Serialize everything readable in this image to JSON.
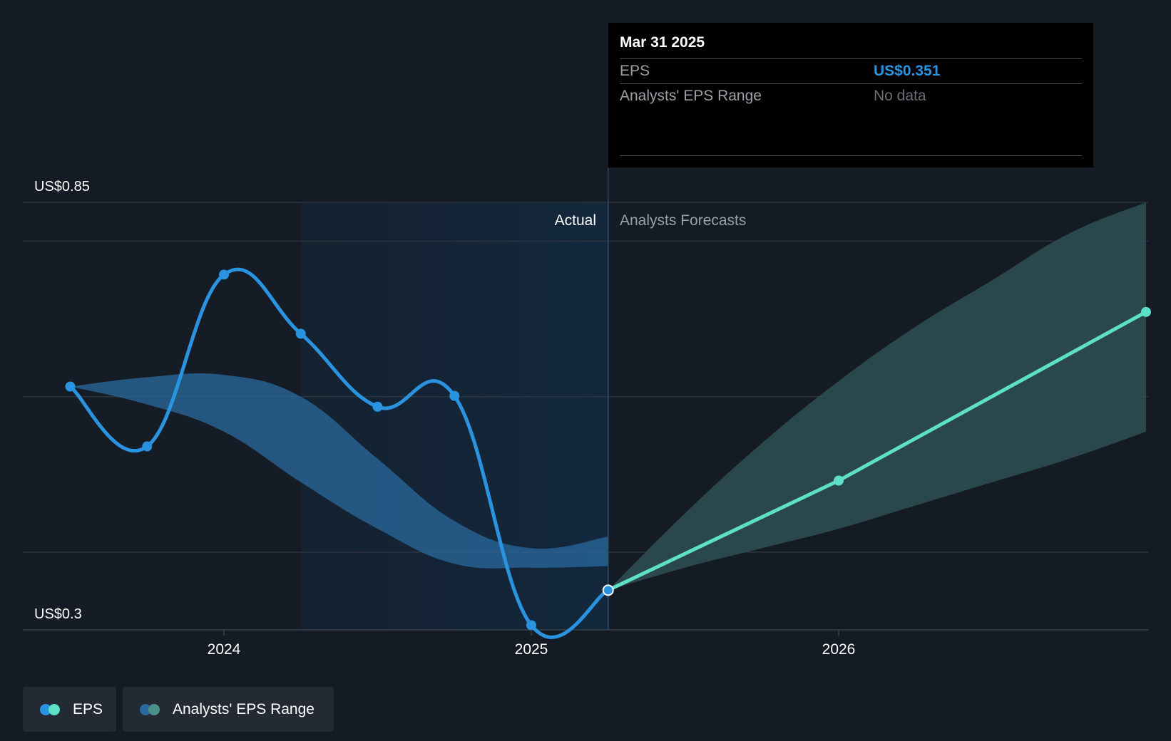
{
  "chart_data": {
    "type": "line",
    "y_axis": {
      "top_label": "US$0.85",
      "bottom_label": "US$0.3",
      "ylim": [
        0.3,
        0.85
      ]
    },
    "x_ticks": [
      {
        "label": "2024",
        "year": 2024.0
      },
      {
        "label": "2025",
        "year": 2025.0
      },
      {
        "label": "2026",
        "year": 2026.0
      }
    ],
    "regions": {
      "actual_label": "Actual",
      "forecast_label": "Analysts Forecasts",
      "divider_year": 2025.25
    },
    "series": [
      {
        "name": "EPS",
        "points": [
          {
            "x": 2023.5,
            "y": 0.613
          },
          {
            "x": 2023.75,
            "y": 0.536
          },
          {
            "x": 2024.0,
            "y": 0.757
          },
          {
            "x": 2024.25,
            "y": 0.681
          },
          {
            "x": 2024.5,
            "y": 0.587
          },
          {
            "x": 2024.75,
            "y": 0.601
          },
          {
            "x": 2025.0,
            "y": 0.306
          },
          {
            "x": 2025.25,
            "y": 0.351
          }
        ],
        "color": "#2a93e0"
      },
      {
        "name": "EPS forecast",
        "points": [
          {
            "x": 2025.25,
            "y": 0.351
          },
          {
            "x": 2026.0,
            "y": 0.492
          },
          {
            "x": 2027.0,
            "y": 0.709
          }
        ],
        "color": "#5ee0c8"
      }
    ],
    "past_range": {
      "x": [
        2023.5,
        2023.75,
        2024.0,
        2024.25,
        2024.5,
        2024.75,
        2025.0,
        2025.25
      ],
      "upper": [
        0.613,
        0.625,
        0.628,
        0.6,
        0.52,
        0.44,
        0.405,
        0.42
      ],
      "lower": [
        0.613,
        0.59,
        0.555,
        0.49,
        0.43,
        0.385,
        0.38,
        0.382
      ]
    },
    "forecast_range": {
      "x": [
        2025.25,
        2025.5,
        2025.75,
        2026.0,
        2026.25,
        2026.5,
        2026.75,
        2027.0
      ],
      "upper": [
        0.351,
        0.45,
        0.54,
        0.62,
        0.69,
        0.75,
        0.81,
        0.85
      ],
      "lower": [
        0.351,
        0.38,
        0.405,
        0.43,
        0.46,
        0.49,
        0.52,
        0.555
      ]
    },
    "colors": {
      "eps": "#2a93e0",
      "forecast": "#5ee0c8",
      "past_range": "#2a6a9e",
      "forecast_range": "#2e4f54",
      "actual_shade": "#13283d",
      "background": "#151b24"
    }
  },
  "tooltip": {
    "date": "Mar 31 2025",
    "rows": [
      {
        "label": "EPS",
        "value": "US$0.351"
      },
      {
        "label": "Analysts' EPS Range",
        "value": "No data"
      }
    ]
  },
  "legend": {
    "items": [
      {
        "label": "EPS",
        "colors": [
          "#2a93e0",
          "#5ee0c8"
        ]
      },
      {
        "label": "Analysts' EPS Range",
        "colors": [
          "#2a6a9e",
          "#4a8f88"
        ]
      }
    ]
  }
}
